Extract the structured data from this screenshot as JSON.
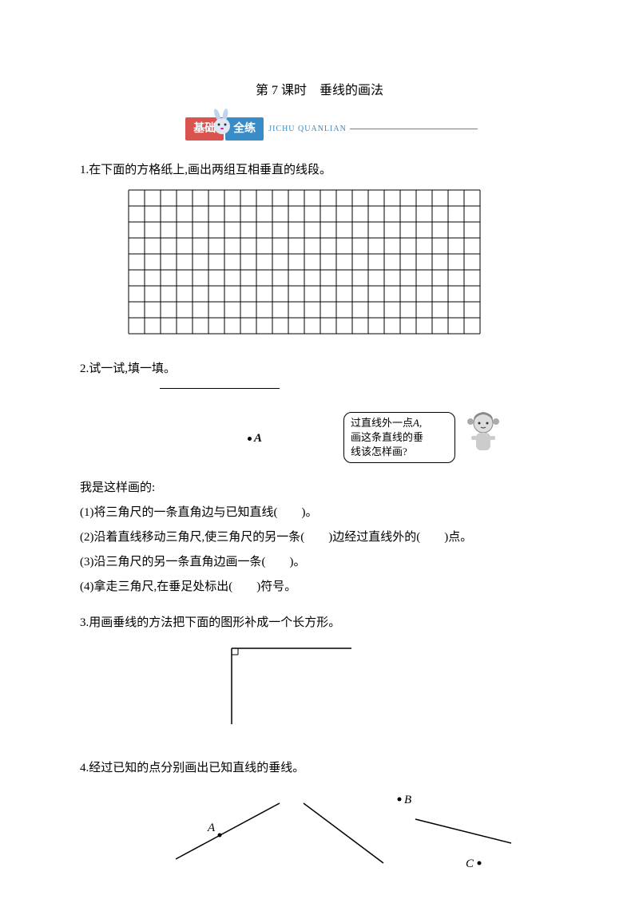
{
  "title": "第 7 课时　垂线的画法",
  "banner": {
    "text1": "基础",
    "text2": "全练",
    "sub": "JICHU QUANLIAN"
  },
  "q1": {
    "text": "1.在下面的方格纸上,画出两组互相垂直的线段。",
    "grid": {
      "cols": 22,
      "rows": 9,
      "cell_size": 20,
      "stroke": "#000000"
    }
  },
  "q2": {
    "text": "2.试一试,填一填。",
    "point_label": "A",
    "bubble_line1": "过直线外一点",
    "bubble_line2": "画这条直线的垂",
    "bubble_line3": "线该怎样画?",
    "intro": "我是这样画的:",
    "items": [
      "(1)将三角尺的一条直角边与已知直线(　　)。",
      "(2)沿着直线移动三角尺,使三角尺的另一条(　　)边经过直线外的(　　)点。",
      "(3)沿三角尺的另一条直角边画一条(　　)。",
      "(4)拿走三角尺,在垂足处标出(　　)符号。"
    ]
  },
  "q3": {
    "text": "3.用画垂线的方法把下面的图形补成一个长方形。",
    "shape": {
      "hlen": 150,
      "vlen": 95
    }
  },
  "q4": {
    "text": "4.经过已知的点分别画出已知直线的垂线。",
    "labels": {
      "a": "A",
      "b": "B",
      "c": "C"
    }
  }
}
